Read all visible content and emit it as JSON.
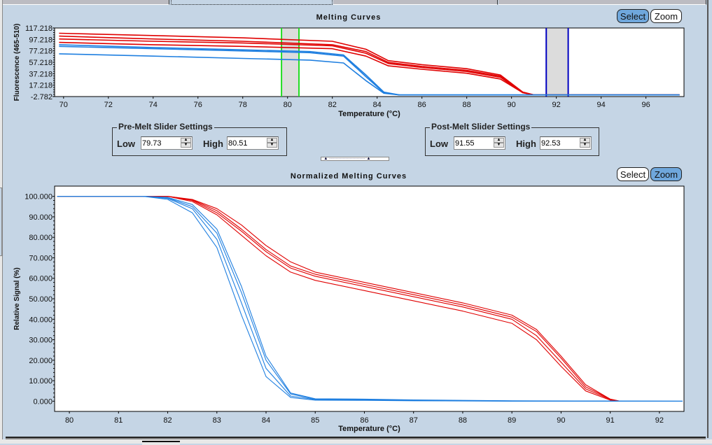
{
  "window": {
    "tabs": [
      {
        "label": "",
        "active": false
      },
      {
        "label": "",
        "active": true
      },
      {
        "label": "",
        "active": false
      },
      {
        "label": "",
        "active": false
      }
    ]
  },
  "top_chart": {
    "select_label": "Select",
    "zoom_label": "Zoom",
    "active_mode": "select"
  },
  "pre_melt": {
    "title": "Pre-Melt Slider Settings",
    "low_label": "Low",
    "low_value": "79.73",
    "high_label": "High",
    "high_value": "80.51"
  },
  "post_melt": {
    "title": "Post-Melt Slider Settings",
    "low_label": "Low",
    "low_value": "91.55",
    "high_label": "High",
    "high_value": "92.53"
  },
  "bottom_chart": {
    "select_label": "Select",
    "zoom_label": "Zoom",
    "active_mode": "zoom"
  },
  "colors": {
    "red_series": "#e00000",
    "blue_series": "#1f7fe0",
    "pre_melt_cursor": "#22dd22",
    "post_melt_cursor": "#0000c0",
    "cursor_band": "#dcdcdc",
    "panel_bg": "#c5d5e5",
    "active_button": "#6fa7dc"
  },
  "chart_data": [
    {
      "type": "line",
      "title": "Melting Curves",
      "xlabel": "Temperature (°C)",
      "ylabel": "Fluorescence (465-510)",
      "xlim": [
        69.6,
        97.7
      ],
      "ylim": [
        -2.782,
        117.218
      ],
      "xticks": [
        70,
        72,
        74,
        76,
        78,
        80,
        82,
        84,
        86,
        88,
        90,
        92,
        94,
        96
      ],
      "yticks": [
        "117.218",
        "97.218",
        "77.218",
        "57.218",
        "37.218",
        "17.218",
        "-2.782"
      ],
      "ytick_values": [
        117.218,
        97.218,
        77.218,
        57.218,
        37.218,
        17.218,
        -2.782
      ],
      "bands": [
        {
          "name": "pre-melt",
          "low": 79.73,
          "high": 80.51
        },
        {
          "name": "post-melt",
          "low": 91.55,
          "high": 92.53
        }
      ],
      "series": [
        {
          "name": "red-1",
          "color": "red",
          "x": [
            69.8,
            74,
            78,
            82,
            83.5,
            84.5,
            86,
            88,
            89.5,
            90.5,
            91,
            97.5
          ],
          "y": [
            108,
            104,
            100,
            94,
            80,
            60,
            53,
            46,
            35,
            5,
            0,
            0
          ]
        },
        {
          "name": "red-2",
          "color": "red",
          "x": [
            69.8,
            74,
            78,
            82,
            83.5,
            84.5,
            86,
            88,
            89.5,
            90.5,
            91,
            97.5
          ],
          "y": [
            103,
            98,
            94,
            88,
            76,
            57,
            50,
            43,
            33,
            5,
            0,
            0
          ]
        },
        {
          "name": "red-3",
          "color": "red",
          "x": [
            69.8,
            74,
            78,
            82,
            83.5,
            84.5,
            86,
            88,
            89.5,
            90.5,
            91,
            97.5
          ],
          "y": [
            98,
            94,
            91,
            86,
            73,
            55,
            48,
            41,
            31,
            4,
            0,
            0
          ]
        },
        {
          "name": "red-4",
          "color": "red",
          "x": [
            69.8,
            74,
            78,
            82,
            83.5,
            84.5,
            86,
            88,
            89.5,
            90.5,
            91,
            97.5
          ],
          "y": [
            92,
            88,
            85,
            81,
            68,
            51,
            45,
            38,
            28,
            4,
            0,
            0
          ]
        },
        {
          "name": "blue-1",
          "color": "blue",
          "x": [
            69.8,
            74,
            78,
            81,
            82.5,
            83.5,
            84.3,
            85,
            97.5
          ],
          "y": [
            88,
            83,
            79,
            76,
            70,
            35,
            5,
            0,
            0
          ]
        },
        {
          "name": "blue-2",
          "color": "blue",
          "x": [
            69.8,
            74,
            78,
            81,
            82.5,
            83.5,
            84.3,
            85,
            97.5
          ],
          "y": [
            85,
            81,
            77,
            74,
            68,
            32,
            4,
            0,
            0
          ]
        },
        {
          "name": "blue-3",
          "color": "blue",
          "x": [
            69.8,
            74,
            78,
            81,
            82.5,
            83.5,
            84.3,
            85,
            97.5
          ],
          "y": [
            72,
            68,
            64,
            61,
            56,
            25,
            3,
            0,
            0
          ]
        }
      ]
    },
    {
      "type": "line",
      "title": "Normalized Melting Curves",
      "xlabel": "Temperature (°C)",
      "ylabel": "Relative Signal (%)",
      "xlim": [
        79.7,
        92.5
      ],
      "ylim": [
        -5,
        105
      ],
      "xticks": [
        80,
        81,
        82,
        83,
        84,
        85,
        86,
        87,
        88,
        89,
        90,
        91,
        92
      ],
      "yticks": [
        "100.000",
        "90.000",
        "80.000",
        "70.000",
        "60.000",
        "50.000",
        "40.000",
        "30.000",
        "20.000",
        "10.000",
        "0.000"
      ],
      "ytick_values": [
        100,
        90,
        80,
        70,
        60,
        50,
        40,
        30,
        20,
        10,
        0
      ],
      "series": [
        {
          "name": "red-1",
          "color": "red",
          "x": [
            79.75,
            82,
            82.5,
            83,
            83.5,
            84,
            84.5,
            85,
            86,
            87,
            88,
            89,
            89.5,
            90,
            90.5,
            91,
            91.2
          ],
          "y": [
            100,
            100,
            98.5,
            94,
            86,
            76,
            68,
            63,
            58,
            53,
            48,
            42,
            35,
            22,
            8,
            1,
            0
          ]
        },
        {
          "name": "red-2",
          "color": "red",
          "x": [
            79.75,
            82,
            82.5,
            83,
            83.5,
            84,
            84.5,
            85,
            86,
            87,
            88,
            89,
            89.5,
            90,
            90.5,
            91,
            91.2
          ],
          "y": [
            100,
            100,
            98.3,
            93,
            84,
            74,
            66,
            62,
            57,
            52,
            47,
            41,
            34,
            21,
            7,
            1,
            0
          ]
        },
        {
          "name": "red-3",
          "color": "red",
          "x": [
            79.75,
            82,
            82.5,
            83,
            83.5,
            84,
            84.5,
            85,
            86,
            87,
            88,
            89,
            89.5,
            90,
            90.5,
            91,
            91.2
          ],
          "y": [
            100,
            100,
            98,
            92,
            83,
            73,
            65,
            61,
            56,
            51,
            46,
            40,
            32,
            19,
            6,
            0.8,
            0
          ]
        },
        {
          "name": "red-4",
          "color": "red",
          "x": [
            79.75,
            82,
            82.5,
            83,
            83.5,
            84,
            84.5,
            85,
            86,
            87,
            88,
            89,
            89.5,
            90,
            90.5,
            91,
            91.2
          ],
          "y": [
            100,
            100,
            97.5,
            91,
            81,
            71,
            63,
            59,
            54,
            49,
            44,
            38,
            30,
            17,
            5,
            0.5,
            0
          ]
        },
        {
          "name": "blue-1",
          "color": "blue",
          "x": [
            79.75,
            81.5,
            82,
            82.5,
            83,
            83.5,
            84,
            84.5,
            85,
            86,
            87,
            88,
            89,
            92.5
          ],
          "y": [
            100,
            100,
            99.5,
            96,
            84,
            56,
            22,
            4,
            1.2,
            1,
            0.6,
            0.4,
            0.2,
            0
          ]
        },
        {
          "name": "blue-2",
          "color": "blue",
          "x": [
            79.75,
            81.5,
            82,
            82.5,
            83,
            83.5,
            84,
            84.5,
            85,
            86,
            87,
            88,
            89,
            92.5
          ],
          "y": [
            100,
            100,
            99.3,
            95,
            82,
            53,
            20,
            3.5,
            1,
            0.8,
            0.5,
            0.3,
            0.1,
            0
          ]
        },
        {
          "name": "blue-3",
          "color": "blue",
          "x": [
            79.75,
            81.5,
            82,
            82.5,
            83,
            83.5,
            84,
            84.5,
            85,
            86,
            87,
            88,
            89,
            92.5
          ],
          "y": [
            100,
            100,
            99,
            94,
            79,
            48,
            16,
            2.5,
            0.8,
            0.6,
            0.4,
            0.2,
            0.1,
            0
          ]
        },
        {
          "name": "blue-4",
          "color": "blue",
          "x": [
            79.75,
            81.5,
            82,
            82.5,
            83,
            83.5,
            84,
            84.5,
            85,
            86,
            87,
            88,
            89,
            92.5
          ],
          "y": [
            100,
            100,
            98.5,
            92,
            75,
            42,
            12,
            1.8,
            0.5,
            0.4,
            0.2,
            0.1,
            0,
            0
          ]
        }
      ]
    }
  ]
}
